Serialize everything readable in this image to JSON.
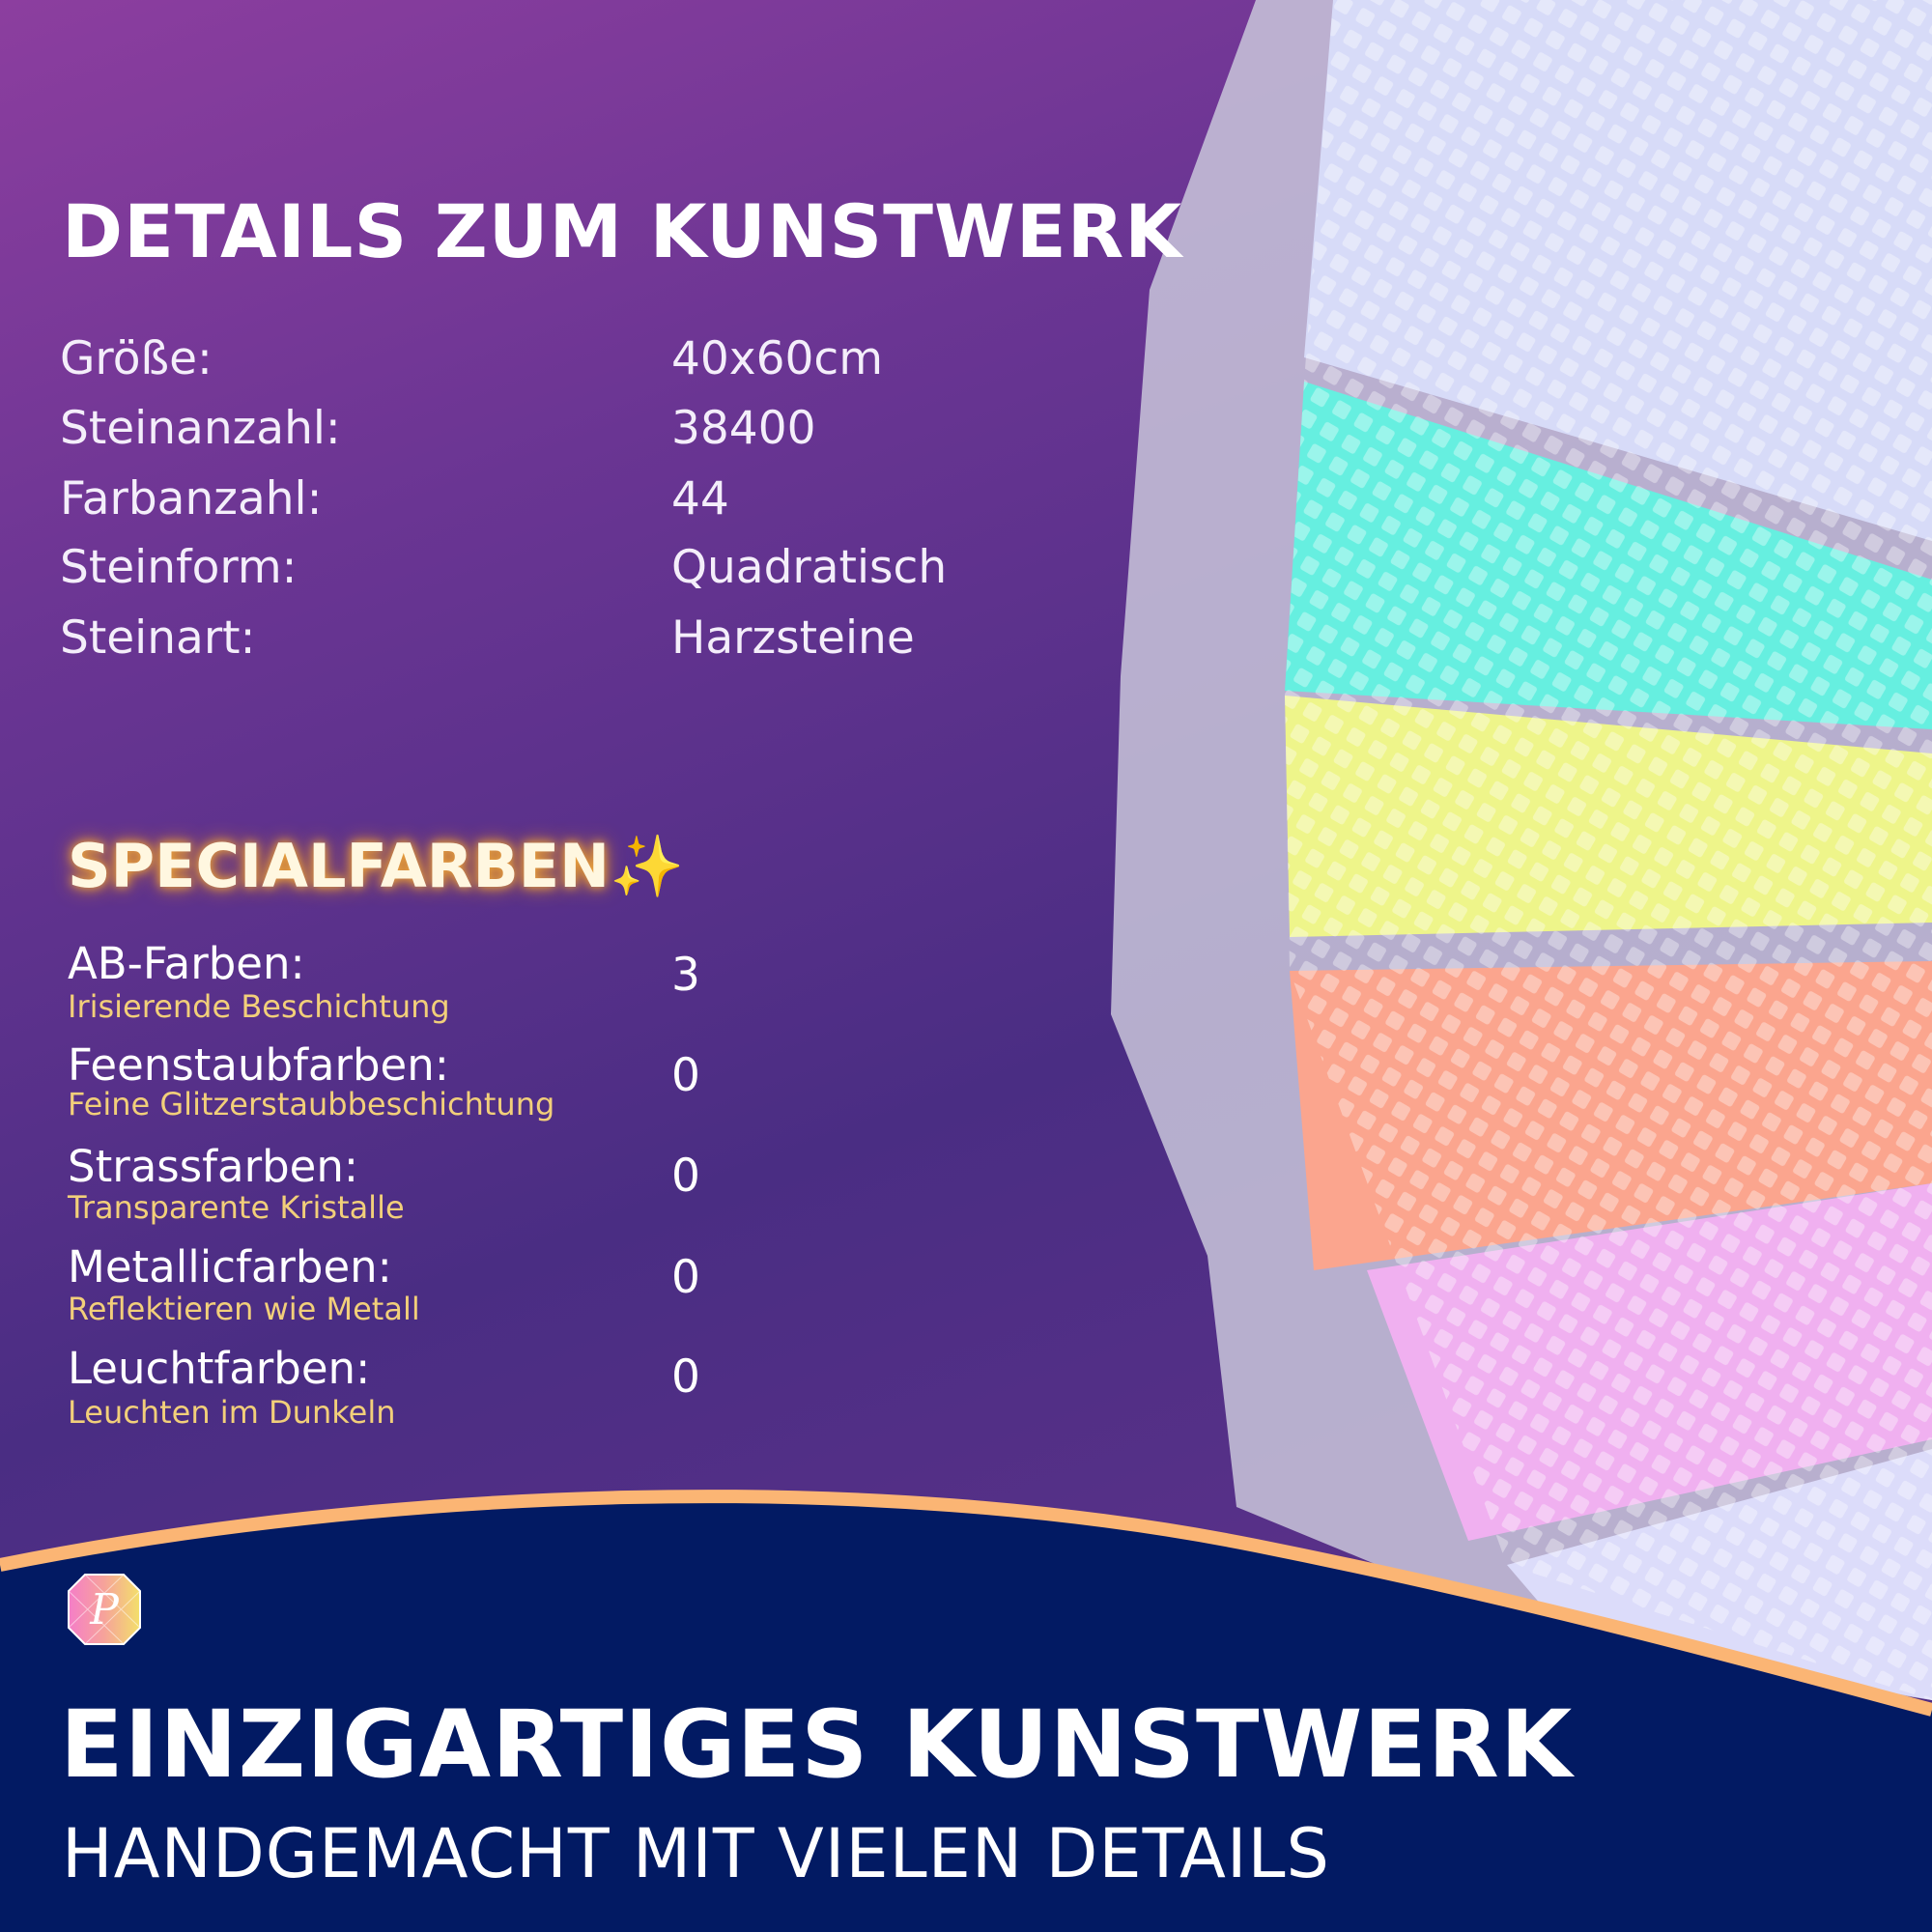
{
  "details": {
    "title": "DETAILS ZUM KUNSTWERK",
    "rows": [
      {
        "label": "Größe:",
        "value": "40x60cm"
      },
      {
        "label": "Steinanzahl:",
        "value": "38400"
      },
      {
        "label": "Farbanzahl:",
        "value": "44"
      },
      {
        "label": "Steinform:",
        "value": "Quadratisch"
      },
      {
        "label": "Steinart:",
        "value": "Harzsteine"
      }
    ]
  },
  "special": {
    "title": "SPECIALFARBEN",
    "sparkle": "✨",
    "rows": [
      {
        "label": "AB-Farben:",
        "sub": "Irisierende Beschichtung",
        "value": "3"
      },
      {
        "label": "Feenstaubfarben:",
        "sub": "Feine Glitzerstaubbeschichtung",
        "value": "0"
      },
      {
        "label": "Strassfarben:",
        "sub": "Transparente Kristalle",
        "value": "0"
      },
      {
        "label": "Metallicfarben:",
        "sub": "Reflektieren wie Metall",
        "value": "0"
      },
      {
        "label": "Leuchtfarben:",
        "sub": "Leuchten im Dunkeln",
        "value": "0"
      }
    ]
  },
  "footer": {
    "title": "EINZIGARTIGES KUNSTWERK",
    "subtitle": "HANDGEMACHT MIT VIELEN DETAILS",
    "logo_letter": "P"
  },
  "colors": {
    "navy": "#021a63",
    "accent": "#fbb574",
    "highlight": "#f2cf7a"
  }
}
